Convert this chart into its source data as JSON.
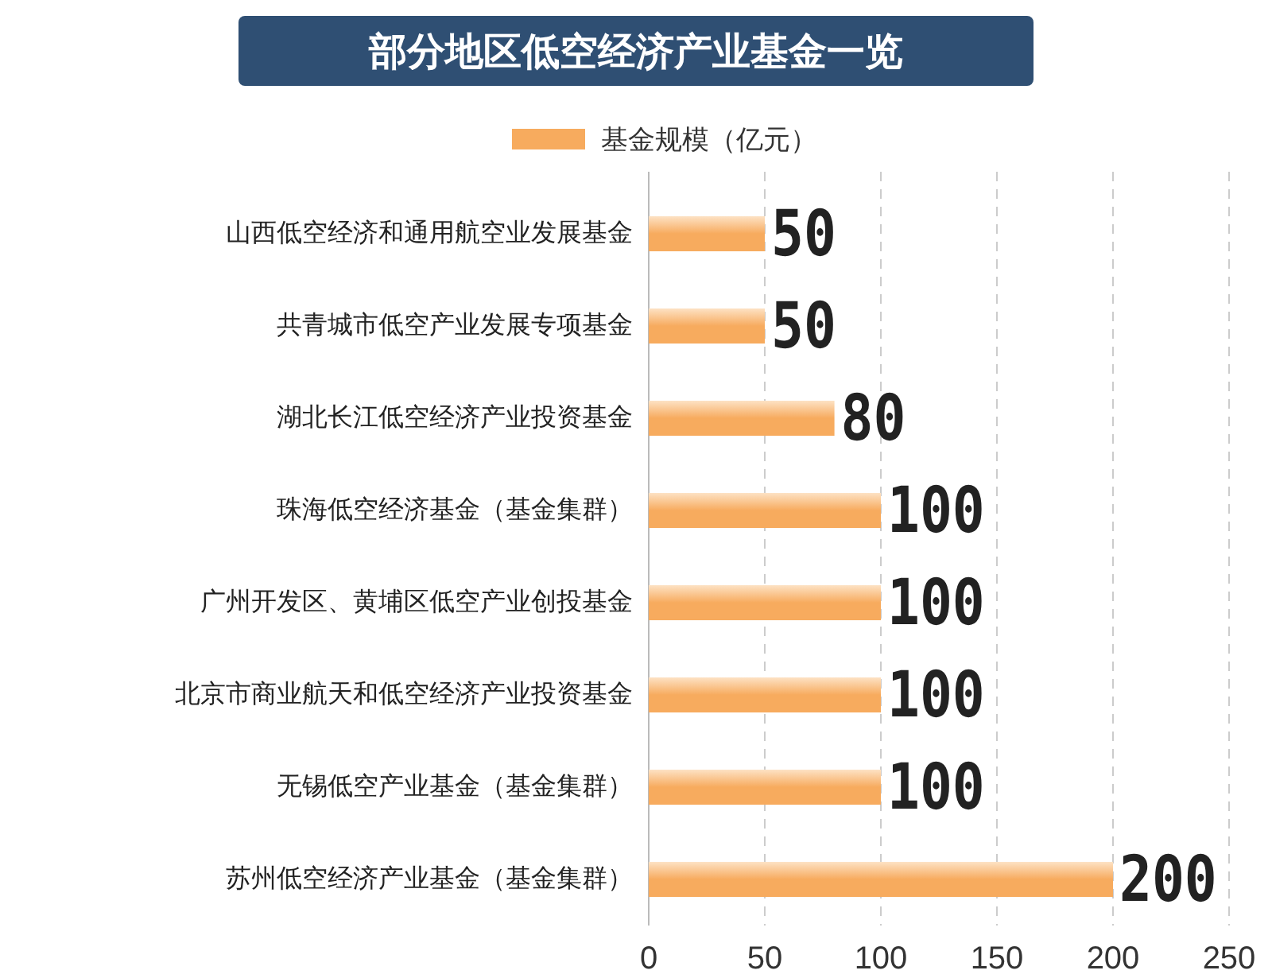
{
  "chart_data": {
    "type": "bar",
    "orientation": "horizontal",
    "title": "部分地区低空经济产业基金一览",
    "categories": [
      "山西低空经济和通用航空业发展基金",
      "共青城市低空产业发展专项基金",
      "湖北长江低空经济产业投资基金",
      "珠海低空经济基金（基金集群）",
      "广州开发区、黄埔区低空产业创投基金",
      "北京市商业航天和低空经济产业投资基金",
      "无锡低空产业基金（基金集群）",
      "苏州低空经济产业基金（基金集群）"
    ],
    "series": [
      {
        "name": "基金规模（亿元）",
        "color": "#f7ab5e",
        "values": [
          50,
          50,
          80,
          100,
          100,
          100,
          100,
          200
        ]
      }
    ],
    "xlim": [
      0,
      250
    ],
    "xticks": [
      0,
      50,
      100,
      150,
      200,
      250
    ],
    "grid": "x",
    "legend": "top",
    "data_labels": true
  }
}
